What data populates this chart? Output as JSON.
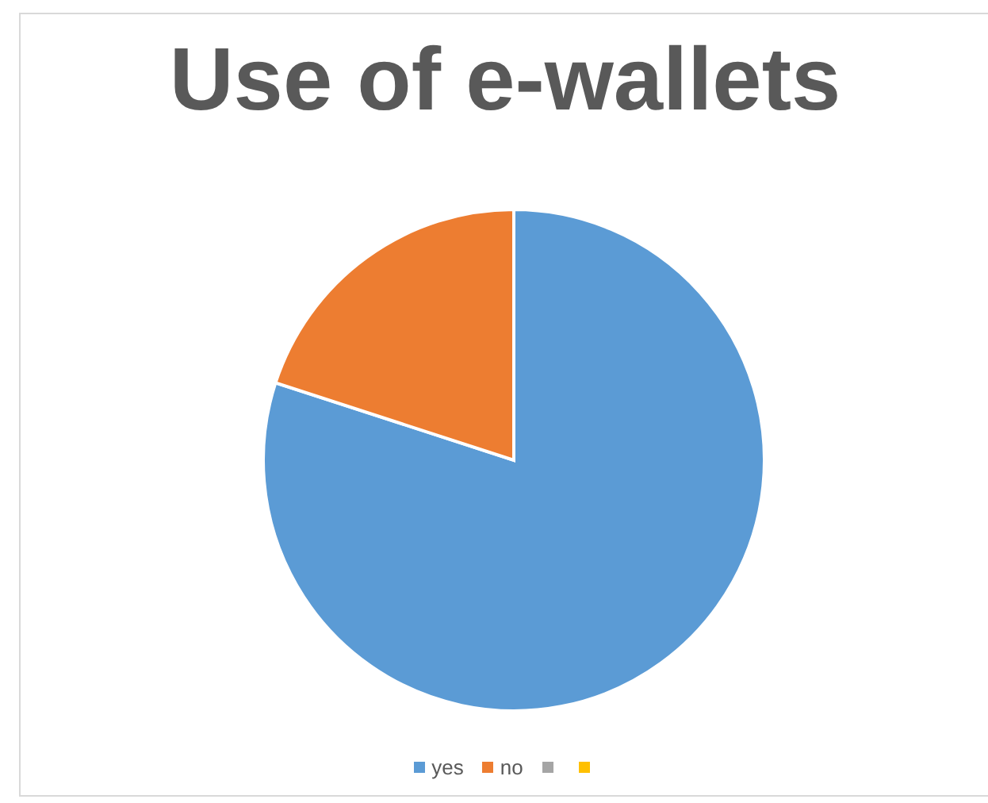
{
  "chart_data": {
    "type": "pie",
    "title": "Use of e-wallets",
    "categories": [
      "yes",
      "no",
      null,
      null
    ],
    "values": [
      80,
      20,
      0,
      0
    ],
    "colors": [
      "#5b9bd5",
      "#ed7d31",
      "#a5a5a5",
      "#ffc000"
    ],
    "legend": "bottom"
  }
}
